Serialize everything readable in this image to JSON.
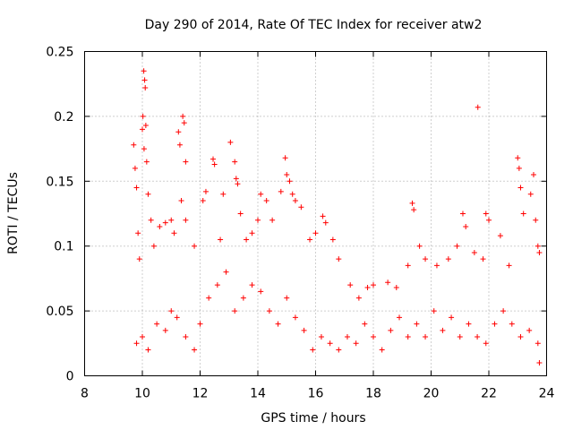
{
  "chart_data": {
    "type": "scatter",
    "title": "Day 290 of 2014, Rate Of TEC Index for receiver atw2",
    "xlabel": "GPS time / hours",
    "ylabel": "ROTI / TECUs",
    "xlim": [
      8,
      24
    ],
    "ylim": [
      0,
      0.25
    ],
    "xticks": [
      "8",
      "10",
      "12",
      "14",
      "16",
      "18",
      "20",
      "22",
      "24"
    ],
    "yticks": [
      "0",
      "0.05",
      "0.1",
      "0.15",
      "0.2",
      "0.25"
    ],
    "grid": true,
    "marker": "plus",
    "color": "#ff0000",
    "series": [
      {
        "name": "ROTI",
        "points": [
          [
            9.7,
            0.178
          ],
          [
            9.75,
            0.16
          ],
          [
            9.8,
            0.145
          ],
          [
            9.85,
            0.11
          ],
          [
            9.9,
            0.09
          ],
          [
            10.05,
            0.235
          ],
          [
            10.08,
            0.228
          ],
          [
            10.1,
            0.222
          ],
          [
            10.02,
            0.2
          ],
          [
            10.12,
            0.193
          ],
          [
            10.0,
            0.19
          ],
          [
            10.06,
            0.175
          ],
          [
            10.15,
            0.165
          ],
          [
            10.2,
            0.14
          ],
          [
            10.3,
            0.12
          ],
          [
            10.4,
            0.1
          ],
          [
            10.6,
            0.115
          ],
          [
            10.8,
            0.118
          ],
          [
            11.0,
            0.12
          ],
          [
            11.1,
            0.11
          ],
          [
            11.25,
            0.188
          ],
          [
            11.3,
            0.178
          ],
          [
            11.4,
            0.2
          ],
          [
            11.45,
            0.195
          ],
          [
            11.5,
            0.165
          ],
          [
            11.35,
            0.135
          ],
          [
            11.5,
            0.12
          ],
          [
            11.8,
            0.1
          ],
          [
            12.1,
            0.135
          ],
          [
            12.2,
            0.142
          ],
          [
            12.45,
            0.167
          ],
          [
            12.5,
            0.163
          ],
          [
            12.7,
            0.105
          ],
          [
            12.8,
            0.14
          ],
          [
            13.05,
            0.18
          ],
          [
            13.2,
            0.165
          ],
          [
            13.25,
            0.152
          ],
          [
            13.3,
            0.148
          ],
          [
            13.4,
            0.125
          ],
          [
            13.6,
            0.105
          ],
          [
            13.8,
            0.11
          ],
          [
            14.0,
            0.12
          ],
          [
            14.1,
            0.14
          ],
          [
            14.3,
            0.135
          ],
          [
            14.5,
            0.12
          ],
          [
            14.8,
            0.142
          ],
          [
            14.95,
            0.168
          ],
          [
            15.0,
            0.155
          ],
          [
            15.1,
            0.15
          ],
          [
            15.2,
            0.14
          ],
          [
            15.3,
            0.135
          ],
          [
            15.5,
            0.13
          ],
          [
            15.8,
            0.105
          ],
          [
            16.0,
            0.11
          ],
          [
            16.25,
            0.123
          ],
          [
            16.35,
            0.118
          ],
          [
            16.6,
            0.105
          ],
          [
            16.8,
            0.09
          ],
          [
            17.2,
            0.07
          ],
          [
            17.5,
            0.06
          ],
          [
            17.8,
            0.068
          ],
          [
            18.0,
            0.07
          ],
          [
            18.5,
            0.072
          ],
          [
            18.8,
            0.068
          ],
          [
            19.2,
            0.085
          ],
          [
            19.35,
            0.133
          ],
          [
            19.4,
            0.128
          ],
          [
            19.6,
            0.1
          ],
          [
            19.8,
            0.09
          ],
          [
            20.2,
            0.085
          ],
          [
            20.6,
            0.09
          ],
          [
            20.9,
            0.1
          ],
          [
            21.1,
            0.125
          ],
          [
            21.2,
            0.115
          ],
          [
            21.5,
            0.095
          ],
          [
            21.62,
            0.207
          ],
          [
            21.8,
            0.09
          ],
          [
            21.9,
            0.125
          ],
          [
            22.0,
            0.12
          ],
          [
            22.4,
            0.108
          ],
          [
            22.7,
            0.085
          ],
          [
            23.0,
            0.168
          ],
          [
            23.05,
            0.16
          ],
          [
            23.1,
            0.145
          ],
          [
            23.2,
            0.125
          ],
          [
            23.45,
            0.14
          ],
          [
            23.55,
            0.155
          ],
          [
            23.62,
            0.12
          ],
          [
            23.7,
            0.1
          ],
          [
            23.75,
            0.095
          ],
          [
            9.8,
            0.025
          ],
          [
            10.0,
            0.03
          ],
          [
            10.2,
            0.02
          ],
          [
            10.5,
            0.04
          ],
          [
            10.8,
            0.035
          ],
          [
            11.0,
            0.05
          ],
          [
            11.2,
            0.045
          ],
          [
            11.5,
            0.03
          ],
          [
            11.8,
            0.02
          ],
          [
            12.0,
            0.04
          ],
          [
            12.3,
            0.06
          ],
          [
            12.6,
            0.07
          ],
          [
            12.9,
            0.08
          ],
          [
            13.2,
            0.05
          ],
          [
            13.5,
            0.06
          ],
          [
            13.8,
            0.07
          ],
          [
            14.1,
            0.065
          ],
          [
            14.4,
            0.05
          ],
          [
            14.7,
            0.04
          ],
          [
            15.0,
            0.06
          ],
          [
            15.3,
            0.045
          ],
          [
            15.6,
            0.035
          ],
          [
            15.9,
            0.02
          ],
          [
            16.2,
            0.03
          ],
          [
            16.5,
            0.025
          ],
          [
            16.8,
            0.02
          ],
          [
            17.1,
            0.03
          ],
          [
            17.4,
            0.025
          ],
          [
            17.7,
            0.04
          ],
          [
            18.0,
            0.03
          ],
          [
            18.3,
            0.02
          ],
          [
            18.6,
            0.035
          ],
          [
            18.9,
            0.045
          ],
          [
            19.2,
            0.03
          ],
          [
            19.5,
            0.04
          ],
          [
            19.8,
            0.03
          ],
          [
            20.1,
            0.05
          ],
          [
            20.4,
            0.035
          ],
          [
            20.7,
            0.045
          ],
          [
            21.0,
            0.03
          ],
          [
            21.3,
            0.04
          ],
          [
            21.6,
            0.03
          ],
          [
            21.9,
            0.025
          ],
          [
            22.2,
            0.04
          ],
          [
            22.5,
            0.05
          ],
          [
            22.8,
            0.04
          ],
          [
            23.1,
            0.03
          ],
          [
            23.4,
            0.035
          ],
          [
            23.7,
            0.025
          ],
          [
            23.75,
            0.01
          ]
        ]
      }
    ]
  }
}
